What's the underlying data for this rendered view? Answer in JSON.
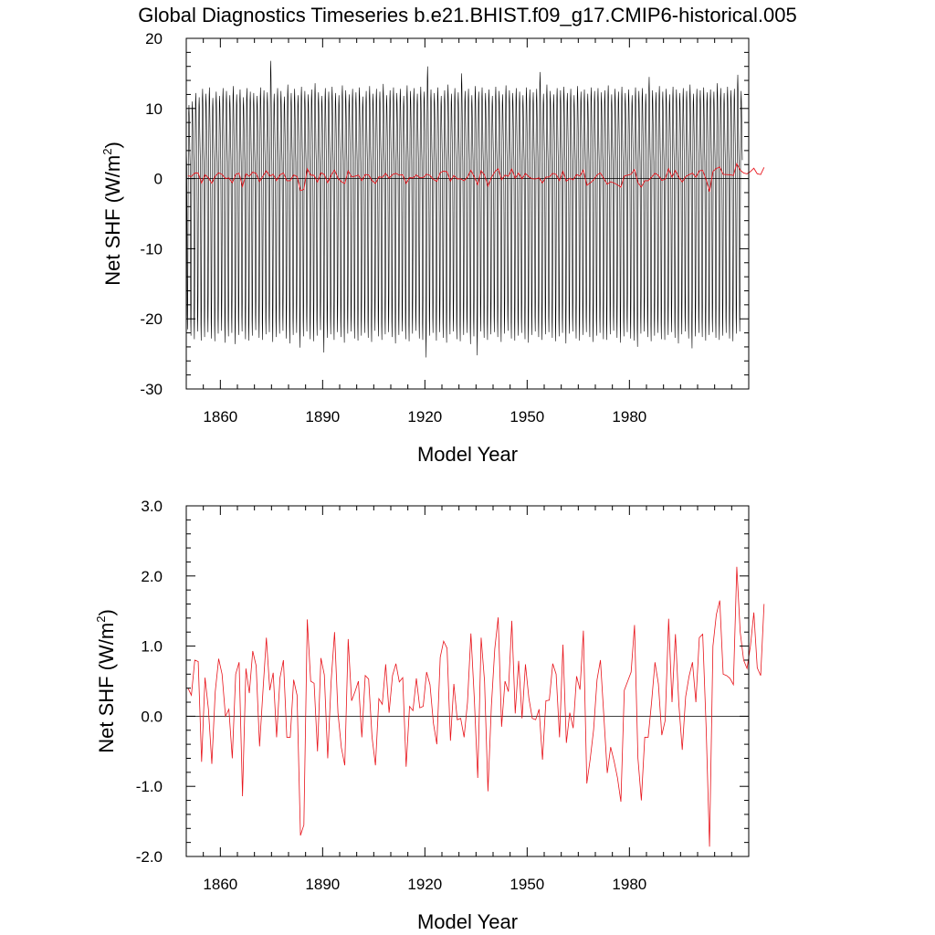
{
  "title": "Global Diagnostics Timeseries b.e21.BHIST.f09_g17.CMIP6-historical.005",
  "colors": {
    "monthly": "#000000",
    "annual": "#e8141b",
    "axis": "#000000",
    "zero_line": "#000000"
  },
  "chart_data": [
    {
      "type": "line",
      "panel": "top",
      "xlabel": "Model Year",
      "ylabel_main": "Net SHF (W/m",
      "ylabel_sup": "2",
      "ylabel_close": ")",
      "xlim": [
        1850,
        2015
      ],
      "ylim": [
        -30,
        20
      ],
      "xticks": [
        1860,
        1890,
        1920,
        1950,
        1980
      ],
      "yticks": [
        20,
        10,
        0,
        -10,
        -20,
        -30
      ],
      "ytick_labels": [
        "20",
        "10",
        "0",
        "-10",
        "-20",
        "-30"
      ],
      "reference_line": 0,
      "series": [
        {
          "name": "monthly",
          "kind": "seasonal cycle per year (12 points/year)",
          "year_start": 1850,
          "year_end": 2014,
          "annual_max": [
            10.5,
            11.0,
            12.2,
            11.6,
            12.8,
            12.1,
            13.0,
            11.5,
            12.4,
            11.8,
            12.9,
            12.5,
            11.9,
            13.2,
            12.0,
            12.7,
            11.6,
            12.9,
            12.4,
            12.2,
            11.8,
            13.0,
            12.6,
            12.3,
            16.8,
            12.1,
            12.9,
            12.5,
            11.7,
            13.4,
            12.2,
            12.8,
            11.9,
            13.1,
            12.5,
            12.0,
            12.7,
            13.6,
            12.3,
            11.8,
            12.9,
            12.4,
            13.1,
            12.2,
            11.9,
            13.3,
            12.6,
            12.0,
            12.8,
            12.3,
            13.0,
            11.7,
            12.5,
            13.2,
            12.1,
            12.8,
            12.4,
            13.5,
            11.9,
            12.6,
            13.0,
            12.2,
            12.8,
            11.8,
            13.3,
            12.5,
            12.9,
            12.1,
            13.1,
            12.4,
            16.0,
            12.7,
            12.2,
            13.0,
            11.8,
            12.6,
            13.4,
            12.1,
            12.9,
            12.3,
            15.0,
            12.5,
            12.8,
            11.9,
            13.2,
            12.4,
            13.0,
            12.2,
            12.7,
            11.8,
            13.1,
            12.5,
            12.0,
            13.3,
            12.6,
            12.2,
            12.9,
            12.4,
            11.9,
            13.0,
            12.7,
            12.3,
            12.8,
            15.2,
            12.1,
            13.4,
            12.5,
            12.0,
            12.9,
            12.6,
            13.1,
            12.2,
            12.8,
            11.9,
            13.2,
            12.4,
            12.7,
            12.1,
            13.0,
            12.5,
            12.9,
            12.3,
            12.6,
            13.3,
            12.0,
            12.8,
            12.4,
            13.1,
            12.2,
            12.7,
            11.9,
            13.0,
            12.5,
            12.9,
            12.1,
            14.5,
            12.6,
            12.3,
            13.2,
            12.4,
            12.8,
            12.0,
            13.1,
            12.7,
            12.2,
            12.9,
            12.5,
            13.4,
            12.1,
            12.8,
            12.6,
            13.0,
            12.3,
            12.7,
            12.4,
            13.6,
            12.9,
            12.2,
            13.1,
            12.6,
            12.8,
            14.8,
            12.5,
            13.2,
            14.2
          ],
          "annual_min": [
            -21.5,
            -22.4,
            -22.9,
            -21.8,
            -23.1,
            -22.6,
            -21.9,
            -22.8,
            -23.2,
            -22.1,
            -21.7,
            -23.4,
            -22.5,
            -22.0,
            -23.6,
            -22.3,
            -21.8,
            -22.9,
            -23.1,
            -22.4,
            -21.6,
            -22.7,
            -23.0,
            -22.2,
            -21.9,
            -23.3,
            -22.6,
            -22.1,
            -21.7,
            -22.8,
            -23.5,
            -22.3,
            -22.0,
            -24.1,
            -22.5,
            -21.8,
            -22.9,
            -23.2,
            -22.4,
            -21.6,
            -24.8,
            -22.7,
            -22.2,
            -23.0,
            -21.9,
            -22.6,
            -23.4,
            -22.1,
            -21.8,
            -22.8,
            -23.1,
            -22.4,
            -22.0,
            -22.7,
            -23.3,
            -21.7,
            -22.5,
            -23.0,
            -22.2,
            -21.9,
            -22.6,
            -23.5,
            -22.3,
            -21.8,
            -22.9,
            -23.2,
            -22.1,
            -21.7,
            -22.8,
            -23.0,
            -25.5,
            -22.4,
            -22.0,
            -23.1,
            -21.9,
            -22.7,
            -23.4,
            -22.2,
            -21.8,
            -22.9,
            -23.2,
            -22.3,
            -22.0,
            -23.6,
            -22.5,
            -25.2,
            -21.8,
            -22.7,
            -23.0,
            -22.2,
            -21.9,
            -22.6,
            -23.3,
            -22.1,
            -21.7,
            -22.8,
            -23.1,
            -22.4,
            -22.0,
            -22.9,
            -23.4,
            -22.3,
            -21.8,
            -22.6,
            -23.0,
            -22.2,
            -21.9,
            -22.7,
            -23.2,
            -22.5,
            -22.0,
            -23.5,
            -22.1,
            -21.8,
            -22.8,
            -23.1,
            -22.3,
            -21.9,
            -22.6,
            -23.3,
            -22.4,
            -22.0,
            -22.9,
            -23.0,
            -22.2,
            -21.7,
            -22.7,
            -23.4,
            -22.5,
            -21.9,
            -22.8,
            -23.1,
            -24.0,
            -22.1,
            -21.8,
            -22.6,
            -23.2,
            -22.4,
            -22.0,
            -22.9,
            -23.0,
            -22.3,
            -21.9,
            -22.7,
            -23.5,
            -22.2,
            -21.8,
            -22.8,
            -24.2,
            -22.5,
            -22.0,
            -22.6,
            -23.1,
            -22.3,
            -21.9,
            -22.7,
            -23.0,
            -22.4,
            -22.0,
            -22.8,
            -23.2,
            -22.1,
            -21.8
          ]
        },
        {
          "name": "annual",
          "color": "#e8141b",
          "x_start": 1850,
          "step": 1,
          "values": [
            0.4,
            0.3,
            0.8,
            0.78,
            -0.65,
            0.55,
            0.1,
            -0.68,
            0.35,
            0.82,
            0.6,
            0.0,
            0.1,
            -0.6,
            0.6,
            0.77,
            -1.14,
            0.68,
            0.33,
            0.93,
            0.72,
            -0.43,
            0.36,
            1.12,
            0.37,
            0.62,
            -0.3,
            0.55,
            0.8,
            -0.3,
            -0.3,
            0.52,
            0.3,
            -1.7,
            -1.55,
            1.38,
            0.5,
            0.47,
            -0.5,
            0.83,
            0.59,
            -0.6,
            0.5,
            1.2,
            0.05,
            -0.45,
            -0.7,
            1.1,
            0.22,
            0.35,
            0.5,
            -0.3,
            0.58,
            0.53,
            -0.3,
            -0.7,
            0.25,
            0.17,
            0.74,
            0.05,
            0.58,
            0.75,
            0.49,
            0.55,
            -0.72,
            0.14,
            0.08,
            0.54,
            0.12,
            0.14,
            0.63,
            0.45,
            -0.1,
            -0.4,
            0.84,
            1.07,
            0.97,
            -0.35,
            0.46,
            -0.05,
            -0.03,
            -0.3,
            0.2,
            1.18,
            0.25,
            -0.88,
            1.12,
            0.5,
            -1.07,
            0.14,
            0.96,
            1.41,
            -0.15,
            0.5,
            0.35,
            1.36,
            0.04,
            0.79,
            -0.03,
            0.74,
            0.26,
            -0.03,
            -0.05,
            0.1,
            -0.62,
            0.22,
            0.23,
            0.75,
            0.6,
            -0.3,
            1.02,
            -0.38,
            0.05,
            -0.17,
            0.57,
            0.38,
            1.22,
            -0.96,
            -0.61,
            -0.19,
            0.52,
            0.8,
            0.0,
            -0.81,
            -0.44,
            -0.64,
            -0.88,
            -1.22,
            0.37,
            0.5,
            0.63,
            1.3,
            -0.6,
            -1.2,
            -0.3,
            -0.3,
            0.2,
            0.77,
            0.46,
            -0.27,
            -0.06,
            1.39,
            0.2,
            1.17,
            0.17,
            -0.48,
            0.28,
            0.57,
            0.77,
            0.2,
            1.12,
            1.17,
            -0.15,
            -1.86,
            1.0,
            1.45,
            1.65,
            0.6,
            0.58,
            0.54,
            0.45,
            2.13,
            1.2,
            0.8,
            0.68,
            1.0,
            1.48,
            0.69,
            0.58,
            1.6
          ]
        }
      ]
    },
    {
      "type": "line",
      "panel": "bottom",
      "xlabel": "Model Year",
      "ylabel_main": "Net SHF (W/m",
      "ylabel_sup": "2",
      "ylabel_close": ")",
      "xlim": [
        1850,
        2015
      ],
      "ylim": [
        -2.0,
        3.0
      ],
      "xticks": [
        1860,
        1890,
        1920,
        1950,
        1980
      ],
      "yticks": [
        3.0,
        2.0,
        1.0,
        0.0,
        -1.0,
        -2.0
      ],
      "ytick_labels": [
        "3.0",
        "2.0",
        "1.0",
        "0.0",
        "-1.0",
        "-2.0"
      ],
      "reference_line": 0,
      "series_ref": "annual"
    }
  ]
}
